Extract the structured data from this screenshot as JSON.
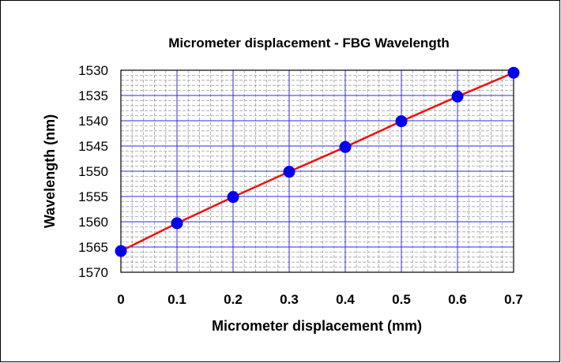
{
  "chart_data": {
    "type": "line",
    "title": "Micrometer displacement - FBG Wavelength",
    "xlabel": "Micrometer displacement (mm)",
    "ylabel": "Wavelength (nm)",
    "xlim": [
      0,
      0.7
    ],
    "ylim": [
      1530,
      1570
    ],
    "y_inverted": true,
    "x_ticks": [
      "0",
      "0.1",
      "0.2",
      "0.3",
      "0.4",
      "0.5",
      "0.6",
      "0.7"
    ],
    "y_ticks": [
      "1530",
      "1535",
      "1540",
      "1545",
      "1550",
      "1555",
      "1560",
      "1565",
      "1570"
    ],
    "grid": true,
    "legend": "none",
    "series": [
      {
        "x": [
          0,
          0.1,
          0.2,
          0.3,
          0.4,
          0.5,
          0.6,
          0.7
        ],
        "y": [
          1565.8,
          1560.3,
          1555.1,
          1550.1,
          1545.2,
          1540.1,
          1535.2,
          1530.5
        ],
        "line_color": "#ee1111",
        "marker_color": "#0000ee"
      }
    ],
    "colors": {
      "major_grid": "#2b2bdd",
      "minor_grid": "#a0a0a0",
      "plot_border": "#000000"
    }
  }
}
